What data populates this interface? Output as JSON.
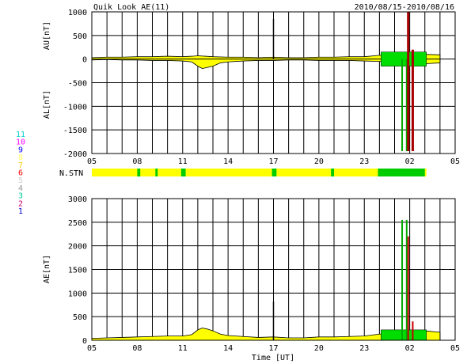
{
  "chart_data": {
    "type": "area",
    "title": "Quik Look AE(11)",
    "date_range": "2010/08/15-2010/08/16",
    "xlabel": "Time [UT]",
    "x_ticks": [
      "05",
      "08",
      "11",
      "14",
      "17",
      "20",
      "23",
      "02",
      "05"
    ],
    "x_tick_hours": [
      5,
      8,
      11,
      14,
      17,
      20,
      23,
      26,
      29
    ],
    "xlim": [
      5,
      29
    ],
    "grid": true,
    "top_panel": {
      "ylabel_upper": "AU[nT]",
      "ylabel_lower": "AL[nT]",
      "ylim": [
        -2000,
        1000
      ],
      "y_ticks": [
        1000,
        500,
        0,
        -500,
        -1000,
        -1500,
        -2000
      ],
      "series": [
        {
          "name": "AU",
          "color": "#ffff00",
          "x": [
            5.0,
            6.0,
            7.0,
            8.0,
            9.0,
            10.0,
            11.0,
            11.6,
            12.0,
            12.5,
            13.0,
            14.0,
            15.0,
            16.0,
            17.0,
            18.0,
            19.0,
            20.0,
            21.0,
            22.0,
            23.0,
            24.0,
            25.0,
            26.0,
            27.0,
            28.0
          ],
          "y": [
            30,
            40,
            40,
            50,
            50,
            60,
            50,
            60,
            70,
            60,
            50,
            40,
            40,
            30,
            40,
            30,
            30,
            40,
            40,
            50,
            50,
            80,
            90,
            110,
            100,
            90
          ]
        },
        {
          "name": "AL",
          "color": "#ffff00",
          "x": [
            5.0,
            6.0,
            7.0,
            8.0,
            9.0,
            10.0,
            11.0,
            11.6,
            12.0,
            12.3,
            12.6,
            13.0,
            13.5,
            14.0,
            15.0,
            16.0,
            17.0,
            18.0,
            19.0,
            20.0,
            21.0,
            22.0,
            23.0,
            24.0,
            25.0,
            26.0,
            27.0,
            28.0
          ],
          "y": [
            -20,
            -10,
            -20,
            -20,
            -30,
            -30,
            -40,
            -60,
            -150,
            -200,
            -180,
            -150,
            -80,
            -60,
            -40,
            -30,
            -30,
            -20,
            -20,
            -30,
            -30,
            -30,
            -40,
            -50,
            -60,
            -80,
            -100,
            -80
          ]
        }
      ],
      "spikes": [
        {
          "hour": 17.0,
          "value": 850,
          "color": "#000000"
        }
      ]
    },
    "station_strip": {
      "label": "N.STN",
      "color_low": "#ffff00",
      "color_high": "#00cc00",
      "green_intervals": [
        [
          8.0,
          8.2
        ],
        [
          9.2,
          9.35
        ],
        [
          10.9,
          11.2
        ],
        [
          16.9,
          17.2
        ],
        [
          20.8,
          21.0
        ],
        [
          23.9,
          27.0
        ]
      ]
    },
    "bottom_panel": {
      "ylabel": "AE[nT]",
      "ylim": [
        0,
        3000
      ],
      "y_ticks": [
        3000,
        2500,
        2000,
        1500,
        1000,
        500,
        0
      ],
      "series": [
        {
          "name": "AE",
          "color": "#ffff00",
          "x": [
            5.0,
            6.0,
            7.0,
            8.0,
            9.0,
            10.0,
            11.0,
            11.6,
            12.0,
            12.3,
            12.6,
            13.0,
            13.5,
            14.0,
            15.0,
            16.0,
            17.0,
            18.0,
            19.0,
            20.0,
            21.0,
            22.0,
            23.0,
            24.0,
            25.0,
            26.0,
            27.0,
            28.0
          ],
          "y": [
            40,
            50,
            60,
            70,
            80,
            90,
            90,
            120,
            220,
            260,
            240,
            200,
            130,
            100,
            80,
            60,
            70,
            50,
            50,
            70,
            70,
            80,
            90,
            130,
            150,
            190,
            200,
            170
          ]
        }
      ],
      "spikes": [
        {
          "hour": 17.0,
          "value": 820,
          "color": "#000000"
        }
      ]
    },
    "disturbance_overlay": {
      "green_region": [
        24.0,
        27.0
      ],
      "red_marks": [
        {
          "hour": 25.9,
          "top_value": 1000,
          "ae_value": 2200
        },
        {
          "hour": 26.2,
          "top_value": 200,
          "ae_value": 400
        }
      ],
      "ae_green_spikes": [
        {
          "hour": 25.5,
          "value": 2550
        },
        {
          "hour": 25.8,
          "value": 2550
        }
      ],
      "al_green_spikes": [
        {
          "hour": 25.5,
          "value": -1950
        },
        {
          "hour": 25.8,
          "value": -1950
        }
      ]
    },
    "legend": {
      "labels": [
        "11",
        "10",
        "9",
        "8",
        "7",
        "6",
        "5",
        "4",
        "3",
        "2",
        "1"
      ],
      "colors": [
        "#00cccc",
        "#ff00ff",
        "#0000ff",
        "#ffff66",
        "#ffcc00",
        "#ff0000",
        "#cccccc",
        "#999999",
        "#00cc99",
        "#cc0066",
        "#0000cc"
      ]
    }
  }
}
